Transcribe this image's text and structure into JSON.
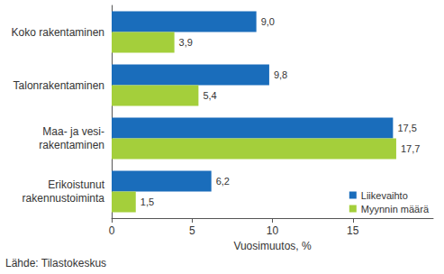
{
  "chart_data": {
    "type": "bar",
    "orientation": "horizontal",
    "categories": [
      "Koko rakentaminen",
      "Talonrakentaminen",
      "Maa- ja vesi-\nrakentaminen",
      "Erikoistunut\nrakennustoiminta"
    ],
    "series": [
      {
        "name": "Liikevaihto",
        "color": "#1a6dbb",
        "values": [
          9.0,
          9.8,
          17.5,
          6.2
        ],
        "value_labels": [
          "9,0",
          "9,8",
          "17,5",
          "6,2"
        ]
      },
      {
        "name": "Myynnin määrä",
        "color": "#a4cf3b",
        "values": [
          3.9,
          5.4,
          17.7,
          1.5
        ],
        "value_labels": [
          "3,9",
          "5,4",
          "17,7",
          "1,5"
        ]
      }
    ],
    "xlabel": "Vuosimuutos, %",
    "xlim": [
      0,
      20
    ],
    "xticks": [
      0,
      5,
      10,
      15
    ],
    "grid": false,
    "legend": "lower right",
    "data_labels": true,
    "annotations": [
      "Lähde: Tilastokeskus"
    ]
  }
}
